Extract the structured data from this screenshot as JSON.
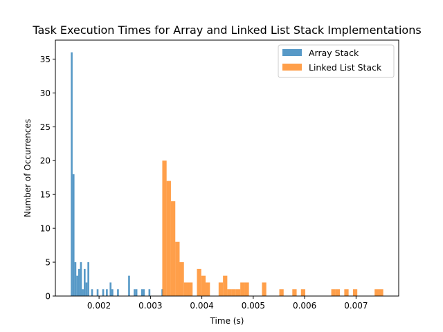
{
  "chart_data": {
    "type": "bar",
    "subtype": "histogram",
    "title": "Task Execution Times for Array and Linked List Stack Implementations",
    "xlabel": "Time (s)",
    "ylabel": "Number of Occurrences",
    "xlim": [
      0.00115,
      0.00783
    ],
    "ylim": [
      0,
      37.8
    ],
    "xticks": [
      {
        "value": 0.002,
        "label": "0.002"
      },
      {
        "value": 0.003,
        "label": "0.003"
      },
      {
        "value": 0.004,
        "label": "0.004"
      },
      {
        "value": 0.005,
        "label": "0.005"
      },
      {
        "value": 0.006,
        "label": "0.006"
      },
      {
        "value": 0.007,
        "label": "0.007"
      }
    ],
    "yticks": [
      {
        "value": 0,
        "label": "0"
      },
      {
        "value": 5,
        "label": "5"
      },
      {
        "value": 10,
        "label": "10"
      },
      {
        "value": 15,
        "label": "15"
      },
      {
        "value": 20,
        "label": "20"
      },
      {
        "value": 25,
        "label": "25"
      },
      {
        "value": 30,
        "label": "30"
      },
      {
        "value": 35,
        "label": "35"
      }
    ],
    "grid": false,
    "legend_position": "upper right",
    "series": [
      {
        "name": "Array Stack",
        "color": "#1f77b4",
        "alpha": 0.75,
        "bin_width": 3.56e-05,
        "bins": [
          {
            "x": 0.00145,
            "count": 36
          },
          {
            "x": 0.001486,
            "count": 18
          },
          {
            "x": 0.001522,
            "count": 5
          },
          {
            "x": 0.001558,
            "count": 3
          },
          {
            "x": 0.001594,
            "count": 4
          },
          {
            "x": 0.00163,
            "count": 5
          },
          {
            "x": 0.001666,
            "count": 1
          },
          {
            "x": 0.001702,
            "count": 4
          },
          {
            "x": 0.001738,
            "count": 2
          },
          {
            "x": 0.001774,
            "count": 5
          },
          {
            "x": 0.001846,
            "count": 1
          },
          {
            "x": 0.001954,
            "count": 1
          },
          {
            "x": 0.002062,
            "count": 1
          },
          {
            "x": 0.002134,
            "count": 1
          },
          {
            "x": 0.002206,
            "count": 2
          },
          {
            "x": 0.002242,
            "count": 1
          },
          {
            "x": 0.00235,
            "count": 1
          },
          {
            "x": 0.002566,
            "count": 3
          },
          {
            "x": 0.002674,
            "count": 1
          },
          {
            "x": 0.00271,
            "count": 1
          },
          {
            "x": 0.002818,
            "count": 1
          },
          {
            "x": 0.002854,
            "count": 1
          },
          {
            "x": 0.002962,
            "count": 1
          },
          {
            "x": 0.003214,
            "count": 1
          }
        ]
      },
      {
        "name": "Linked List Stack",
        "color": "#ff7f0e",
        "alpha": 0.75,
        "bin_width": 8.43e-05,
        "bins": [
          {
            "x": 0.00323,
            "count": 20
          },
          {
            "x": 0.003314,
            "count": 17
          },
          {
            "x": 0.003399,
            "count": 14
          },
          {
            "x": 0.003483,
            "count": 8
          },
          {
            "x": 0.003567,
            "count": 5
          },
          {
            "x": 0.003652,
            "count": 2
          },
          {
            "x": 0.003736,
            "count": 2
          },
          {
            "x": 0.003904,
            "count": 4
          },
          {
            "x": 0.003989,
            "count": 3
          },
          {
            "x": 0.004073,
            "count": 2
          },
          {
            "x": 0.004326,
            "count": 2
          },
          {
            "x": 0.004411,
            "count": 3
          },
          {
            "x": 0.004495,
            "count": 1
          },
          {
            "x": 0.004579,
            "count": 1
          },
          {
            "x": 0.004664,
            "count": 1
          },
          {
            "x": 0.004748,
            "count": 2
          },
          {
            "x": 0.004832,
            "count": 2
          },
          {
            "x": 0.00517,
            "count": 2
          },
          {
            "x": 0.005507,
            "count": 1
          },
          {
            "x": 0.00576,
            "count": 1
          },
          {
            "x": 0.005928,
            "count": 1
          },
          {
            "x": 0.006518,
            "count": 1
          },
          {
            "x": 0.006602,
            "count": 1
          },
          {
            "x": 0.006771,
            "count": 1
          },
          {
            "x": 0.00694,
            "count": 1
          },
          {
            "x": 0.007361,
            "count": 1
          },
          {
            "x": 0.007445,
            "count": 1
          }
        ]
      }
    ]
  }
}
